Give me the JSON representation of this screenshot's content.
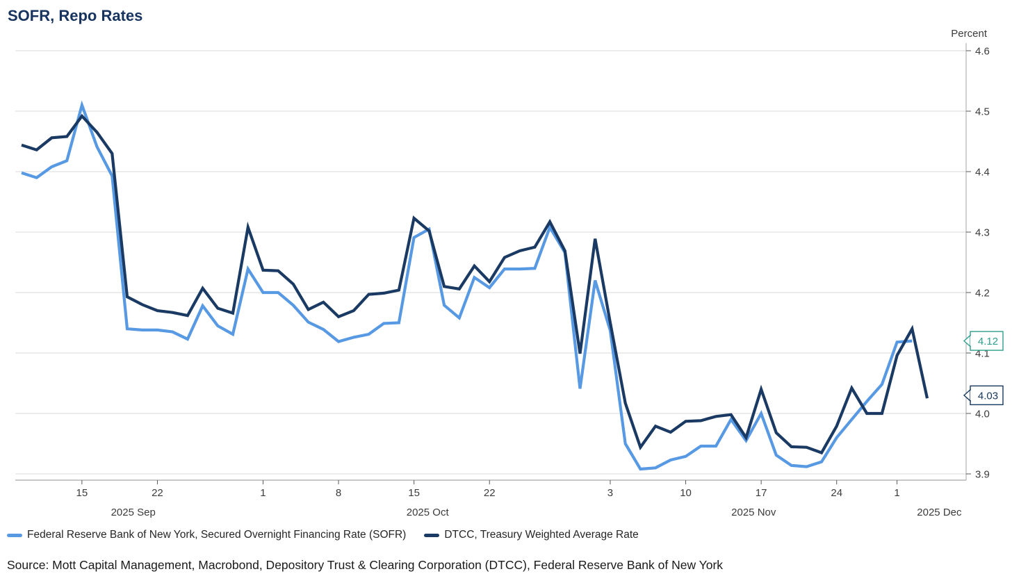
{
  "title": "SOFR, Repo Rates",
  "source": "Source: Mott Capital Management, Macrobond, Depository Trust & Clearing Corporation (DTCC), Federal Reserve Bank of New York",
  "y_axis": {
    "unit_label": "Percent"
  },
  "colors": {
    "sofr_line": "#5899e3",
    "dtcc_line": "#1a3a63",
    "grid": "#d9d9d9",
    "axis": "#a6a6a6",
    "tick": "#595959",
    "tick_text": "#3b3b3b",
    "callout_sofr": "#2f9e8c",
    "callout_dtcc": "#17375e"
  },
  "chart_data": {
    "type": "line",
    "title": "SOFR, Repo Rates",
    "ylabel": "Percent",
    "ylim": [
      3.9,
      4.6
    ],
    "y_ticks": [
      "4.6",
      "4.5",
      "4.4",
      "4.3",
      "4.2",
      "4.1",
      "4.0",
      "3.9"
    ],
    "y_tick_values": [
      4.6,
      4.5,
      4.4,
      4.3,
      4.2,
      4.1,
      4.0,
      3.9
    ],
    "grid": "horizontal",
    "legend_position": "bottom",
    "x": [
      "Sep 9",
      "Sep 10",
      "Sep 11",
      "Sep 12",
      "Sep 15",
      "Sep 16",
      "Sep 17",
      "Sep 18",
      "Sep 19",
      "Sep 22",
      "Sep 23",
      "Sep 24",
      "Sep 25",
      "Sep 26",
      "Sep 29",
      "Sep 30",
      "Oct 1",
      "Oct 2",
      "Oct 3",
      "Oct 6",
      "Oct 7",
      "Oct 8",
      "Oct 9",
      "Oct 10",
      "Oct 13",
      "Oct 14",
      "Oct 15",
      "Oct 16",
      "Oct 17",
      "Oct 20",
      "Oct 21",
      "Oct 22",
      "Oct 23",
      "Oct 24",
      "Oct 27",
      "Oct 28",
      "Oct 29",
      "Oct 30",
      "Oct 31",
      "Nov 3",
      "Nov 4",
      "Nov 5",
      "Nov 6",
      "Nov 7",
      "Nov 10",
      "Nov 11",
      "Nov 12",
      "Nov 13",
      "Nov 14",
      "Nov 17",
      "Nov 18",
      "Nov 19",
      "Nov 20",
      "Nov 21",
      "Nov 24",
      "Nov 25",
      "Nov 26",
      "Nov 28",
      "Dec 1",
      "Dec 2",
      "Dec 3"
    ],
    "x_ticks": [
      {
        "i": 4,
        "label": "15"
      },
      {
        "i": 9,
        "label": "22"
      },
      {
        "i": 16,
        "label": "1"
      },
      {
        "i": 21,
        "label": "8"
      },
      {
        "i": 26,
        "label": "15"
      },
      {
        "i": 31,
        "label": "22"
      },
      {
        "i": 39,
        "label": "3"
      },
      {
        "i": 44,
        "label": "10"
      },
      {
        "i": 49,
        "label": "17"
      },
      {
        "i": 54,
        "label": "24"
      },
      {
        "i": 58,
        "label": "1"
      }
    ],
    "month_labels": [
      {
        "i": 7.4,
        "label": "2025 Sep"
      },
      {
        "i": 26.9,
        "label": "2025 Oct"
      },
      {
        "i": 48.5,
        "label": "2025 Nov"
      },
      {
        "i": 60.8,
        "label": "2025 Dec"
      }
    ],
    "series": [
      {
        "name": "Federal Reserve Bank of New York, Secured Overnight Financing Rate (SOFR)",
        "color_key": "sofr_line",
        "values": [
          4.398,
          4.39,
          4.408,
          4.418,
          4.51,
          4.441,
          4.393,
          4.14,
          4.138,
          4.138,
          4.135,
          4.123,
          4.178,
          4.145,
          4.131,
          4.239,
          4.2,
          4.2,
          4.179,
          4.151,
          4.139,
          4.119,
          4.126,
          4.131,
          4.149,
          4.15,
          4.291,
          4.305,
          4.179,
          4.158,
          4.225,
          4.208,
          4.239,
          4.239,
          4.24,
          4.308,
          4.266,
          4.041,
          4.22,
          4.137,
          3.95,
          3.908,
          3.91,
          3.923,
          3.929,
          3.946,
          3.946,
          3.99,
          3.955,
          4.0,
          3.931,
          3.914,
          3.912,
          3.92,
          3.96,
          3.99,
          4.02,
          4.048,
          4.118,
          4.12,
          null
        ]
      },
      {
        "name": "DTCC, Treasury Weighted Average Rate",
        "color_key": "dtcc_line",
        "values": [
          4.444,
          4.436,
          4.456,
          4.458,
          4.492,
          4.465,
          4.43,
          4.193,
          4.18,
          4.17,
          4.167,
          4.162,
          4.207,
          4.174,
          4.166,
          4.308,
          4.237,
          4.236,
          4.214,
          4.172,
          4.184,
          4.16,
          4.17,
          4.197,
          4.199,
          4.204,
          4.323,
          4.302,
          4.21,
          4.206,
          4.244,
          4.218,
          4.258,
          4.269,
          4.275,
          4.317,
          4.269,
          4.099,
          4.289,
          4.15,
          4.017,
          3.944,
          3.979,
          3.969,
          3.987,
          3.988,
          3.995,
          3.998,
          3.96,
          4.04,
          3.968,
          3.945,
          3.944,
          3.935,
          3.979,
          4.042,
          4.0,
          4.0,
          4.096,
          4.14,
          4.025
        ]
      }
    ],
    "callouts": [
      {
        "label": "4.12",
        "value": 4.12,
        "color_key": "callout_sofr"
      },
      {
        "label": "4.03",
        "value": 4.03,
        "color_key": "callout_dtcc"
      }
    ]
  }
}
